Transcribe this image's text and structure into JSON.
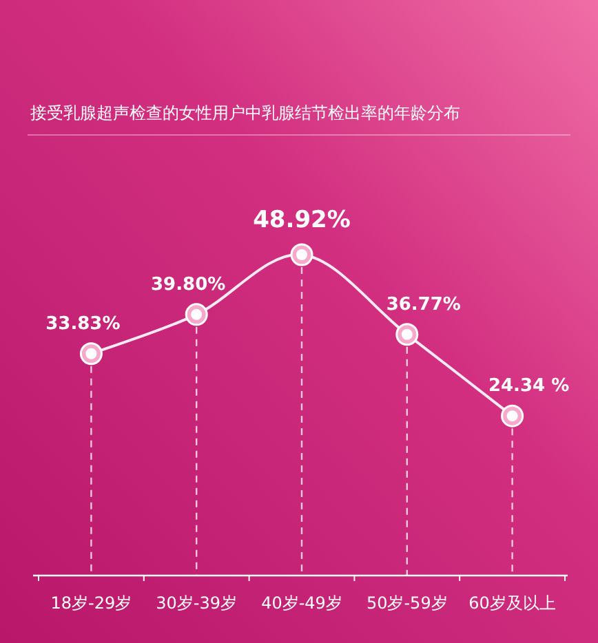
{
  "chart_data": {
    "type": "line",
    "title": "接受乳腺超声检查的女性用户中乳腺结节检出率的年龄分布",
    "categories": [
      "18岁-29岁",
      "30岁-39岁",
      "40岁-49岁",
      "50岁-59岁",
      "60岁及以上"
    ],
    "values": [
      33.83,
      39.8,
      48.92,
      36.77,
      24.34
    ],
    "value_labels": [
      "33.83%",
      "39.80%",
      "48.92%",
      "36.77%",
      "24.34 %"
    ],
    "color": "#ffffff",
    "marker": "circle",
    "grid": "x"
  }
}
